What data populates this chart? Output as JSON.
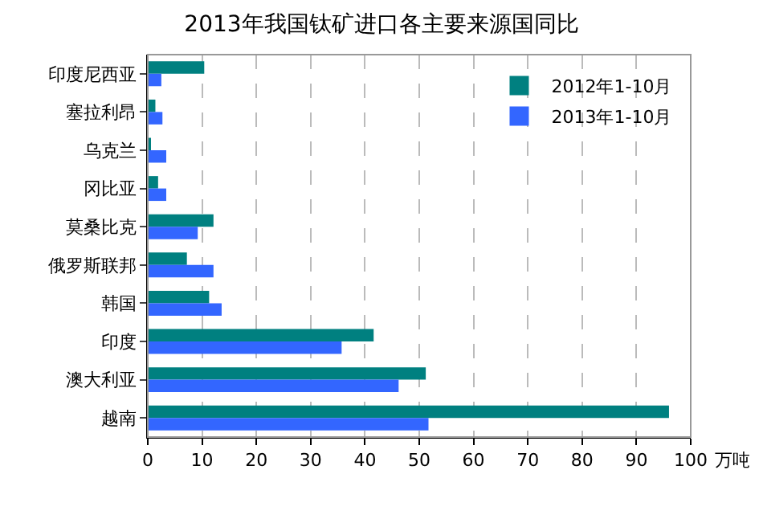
{
  "chart_data": {
    "type": "bar",
    "orientation": "horizontal",
    "title": "2013年我国钛矿进口各主要来源国同比",
    "xlabel": "万吨",
    "categories": [
      "印度尼西亚",
      "塞拉利昂",
      "乌克兰",
      "冈比亚",
      "莫桑比克",
      "俄罗斯联邦",
      "韩国",
      "印度",
      "澳大利亚",
      "越南"
    ],
    "series": [
      {
        "name": "2012年1-10月",
        "color": "#008080",
        "values": [
          10.4,
          1.4,
          0.5,
          1.9,
          12.1,
          7.2,
          11.3,
          41.6,
          51.2,
          96.0
        ]
      },
      {
        "name": "2013年1-10月",
        "color": "#3366ff",
        "values": [
          2.5,
          2.7,
          3.4,
          3.4,
          9.2,
          12.1,
          13.6,
          35.7,
          46.2,
          51.7
        ]
      }
    ],
    "xlim": [
      0,
      100
    ],
    "xticks": [
      0,
      10,
      20,
      30,
      40,
      50,
      60,
      70,
      80,
      90,
      100
    ],
    "grid": "x",
    "legend": "top right"
  }
}
